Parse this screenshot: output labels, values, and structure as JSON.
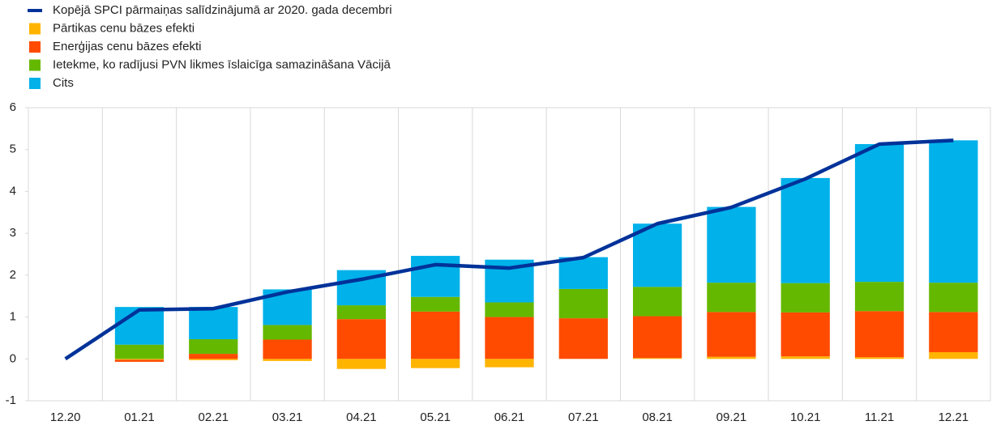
{
  "chart_data": {
    "type": "bar",
    "stacked": true,
    "categories": [
      "12.20",
      "01.21",
      "02.21",
      "03.21",
      "04.21",
      "05.21",
      "06.21",
      "07.21",
      "08.21",
      "09.21",
      "10.21",
      "11.21",
      "12.21"
    ],
    "series": [
      {
        "name": "Kopējā SPCI pārmaiņas salīdzinājumā ar 2020. gada decembri",
        "type": "line",
        "color": "#003299",
        "values": [
          0,
          1.17,
          1.2,
          1.6,
          1.9,
          2.25,
          2.17,
          2.42,
          3.23,
          3.62,
          4.3,
          5.13,
          5.22
        ]
      },
      {
        "name": "Pārtikas cenu bāzes efekti",
        "color": "#ffb400",
        "values": [
          null,
          -0.02,
          -0.03,
          -0.05,
          -0.24,
          -0.22,
          -0.2,
          0,
          0.02,
          0.05,
          0.06,
          0.04,
          0.16
        ]
      },
      {
        "name": "Enerģijas cenu bāzes efekti",
        "color": "#ff4b00",
        "values": [
          null,
          -0.05,
          0.12,
          0.46,
          0.95,
          1.13,
          1.0,
          0.97,
          1.0,
          1.07,
          1.05,
          1.1,
          0.96
        ]
      },
      {
        "name": "Ietekme, ko radījusi PVN likmes īslaicīga samazināšana Vācijā",
        "color": "#65b800",
        "values": [
          null,
          0.34,
          0.35,
          0.35,
          0.33,
          0.35,
          0.35,
          0.7,
          0.7,
          0.7,
          0.7,
          0.7,
          0.7
        ]
      },
      {
        "name": "Cits",
        "color": "#00b1ea",
        "values": [
          null,
          0.9,
          0.77,
          0.85,
          0.84,
          0.98,
          1.02,
          0.76,
          1.51,
          1.81,
          2.51,
          3.29,
          3.4
        ]
      }
    ],
    "ylim": [
      -1,
      6
    ],
    "yticks": [
      -1,
      0,
      1,
      2,
      3,
      4,
      5,
      6
    ]
  }
}
